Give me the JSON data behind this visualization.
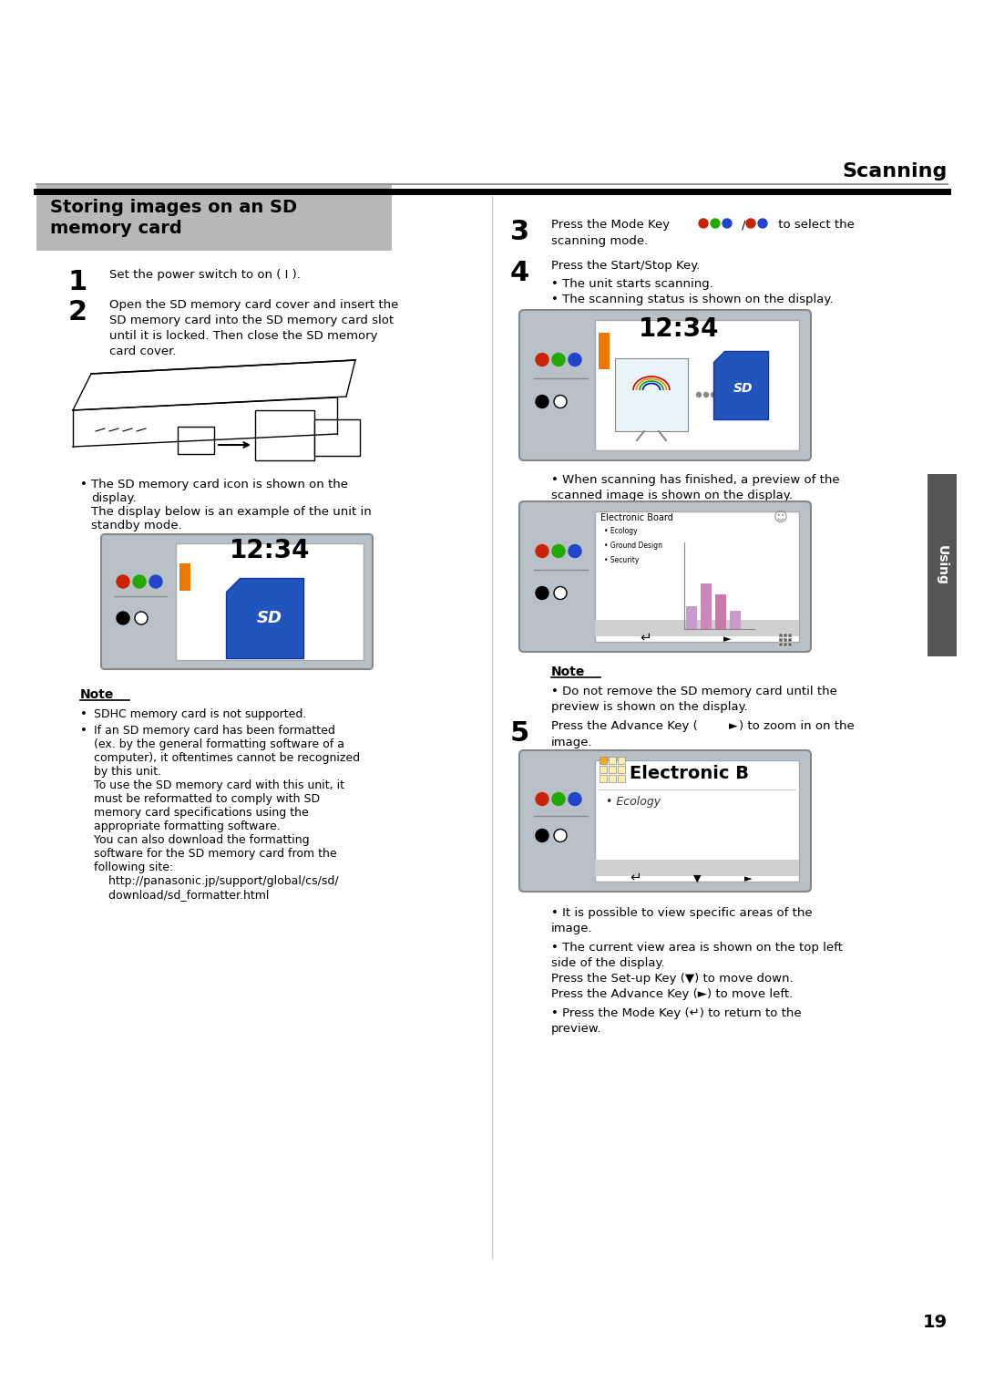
{
  "bg_color": "#ffffff",
  "page_width": 10.8,
  "page_height": 15.28,
  "top_label": "Scanning",
  "section_title_line1": "Storing images on an SD",
  "section_title_line2": "memory card",
  "section_title_bg": "#b8b8b8",
  "step1_text": "Set the power switch to on ( I ).",
  "step2_line1": "Open the SD memory card cover and insert the",
  "step2_line2": "SD memory card into the SD memory card slot",
  "step2_line3": "until it is locked. Then close the SD memory",
  "step2_line4": "card cover.",
  "display_time": "12:34",
  "sd_bullet1a": "The SD memory card icon is shown on the",
  "sd_bullet1b": "display.",
  "sd_bullet2a": "The display below is an example of the unit in",
  "sd_bullet2b": "standby mode.",
  "note_title": "Note",
  "note1": "SDHC memory card is not supported.",
  "note2a": "If an SD memory card has been formatted",
  "note2b": "(ex. by the general formatting software of a",
  "note2c": "computer), it oftentimes cannot be recognized",
  "note2d": "by this unit.",
  "note2e": "To use the SD memory card with this unit, it",
  "note2f": "must be reformatted to comply with SD",
  "note2g": "memory card specifications using the",
  "note2h": "appropriate formatting software.",
  "note2i": "You can also download the formatting",
  "note2j": "software for the SD memory card from the",
  "note2k": "following site:",
  "note2l": "    http://panasonic.jp/support/global/cs/sd/",
  "note2m": "    download/sd_formatter.html",
  "step3_pre": "Press the Mode Key ",
  "step3_post": " to select the",
  "step3_line2": "scanning mode.",
  "step4_text": "Press the Start/Stop Key.",
  "step4_b1": "The unit starts scanning.",
  "step4_b2": "The scanning status is shown on the display.",
  "scan_b1a": "When scanning has finished, a preview of the",
  "scan_b1b": "scanned image is shown on the display.",
  "note_r_title": "Note",
  "note_r_b1a": "Do not remove the SD memory card until the",
  "note_r_b1b": "preview is shown on the display.",
  "step5_line1": "Press the Advance Key (",
  "step5_line2": "image.",
  "s5b1a": "It is possible to view specific areas of the",
  "s5b1b": "image.",
  "s5b2a": "The current view area is shown on the top left",
  "s5b2b": "side of the display.",
  "s5b2c": "Press the Set-up Key (",
  "s5b2d": ") to move down.",
  "s5b2e": "Press the Advance Key (",
  "s5b2f": ") to move left.",
  "s5b3a": "Press the Mode Key (",
  "s5b3b": ") to return to the",
  "s5b3c": "preview.",
  "page_number": "19",
  "side_tab_text": "Using",
  "dot_red": "#cc2200",
  "dot_green": "#22aa00",
  "dot_blue": "#2244cc",
  "display_bg": "#b8c0c8",
  "screen_bg": "#ffffff",
  "sd_card_color": "#2255bb"
}
